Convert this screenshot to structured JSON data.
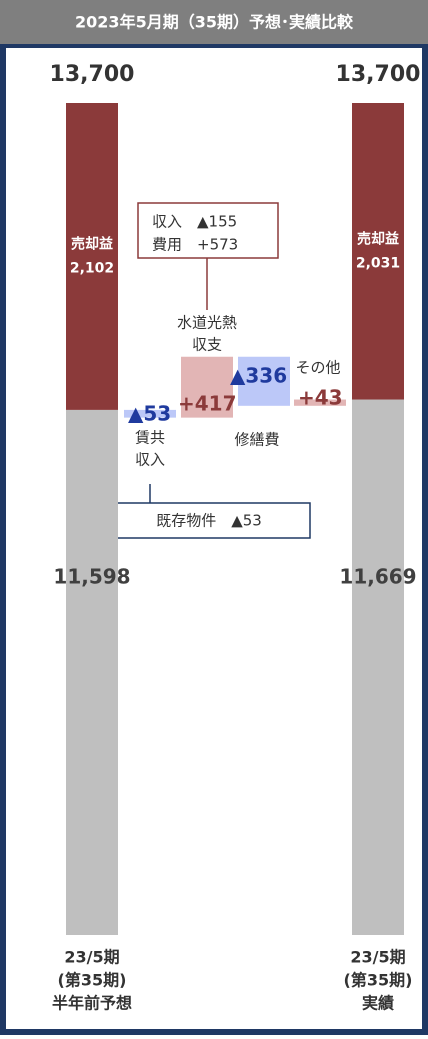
{
  "chart_data": {
    "type": "waterfall",
    "title": "2023年5月期（35期）予想･実績比較",
    "totals": {
      "values": [
        13700,
        13700
      ],
      "value_labels": [
        "13,700",
        "13,700"
      ]
    },
    "categories": [
      [
        "23/5期",
        "(第35期)",
        "半年前予想"
      ],
      [
        "23/5期",
        "(第35期)",
        "実績"
      ]
    ],
    "series": [
      {
        "color": "#bfbfbf",
        "values": [
          11598,
          11669
        ],
        "value_labels": [
          "11,598",
          "11,669"
        ]
      },
      {
        "name": "売却益",
        "color": "#8b3a3a",
        "values": [
          2102,
          2031
        ],
        "value_labels": [
          "2,102",
          "2,031"
        ]
      }
    ],
    "steps": {
      "categories": [
        [
          "賃共",
          "収入"
        ],
        [
          "水道光熱",
          "収支"
        ],
        [
          "修繕費"
        ],
        [
          "その他"
        ]
      ],
      "values": [
        -53,
        417,
        -336,
        43
      ],
      "value_labels": [
        "▲53",
        "+417",
        "▲336",
        "+43"
      ],
      "up_color": "#e2b5b5",
      "down_color": "#bcc8f8",
      "up_label_color": "#8b3a3a",
      "down_label_color": "#1f3a9e"
    },
    "annotations": [
      "収入　▲155",
      "費用　+573",
      "既存物件　▲53"
    ]
  }
}
